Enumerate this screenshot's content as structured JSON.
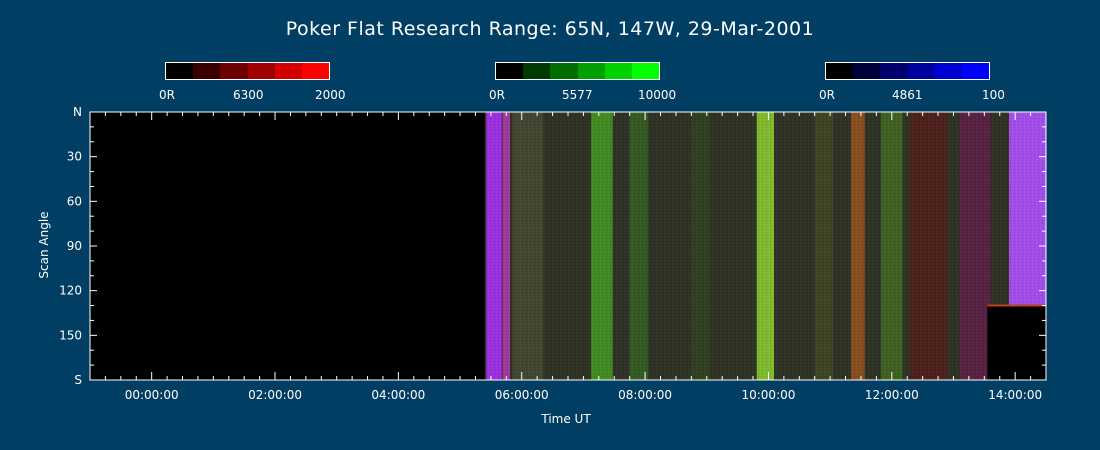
{
  "colorbars": [
    {
      "name": "red",
      "min_label": "0R",
      "mid_label": "6300",
      "max_label": "2000",
      "colors": [
        "#000000",
        "#3a0000",
        "#6e0000",
        "#a00000",
        "#d20000",
        "#ff0000"
      ]
    },
    {
      "name": "green",
      "min_label": "0R",
      "mid_label": "5577",
      "max_label": "10000",
      "colors": [
        "#000000",
        "#003a00",
        "#006e00",
        "#00a000",
        "#00d200",
        "#00ff00"
      ]
    },
    {
      "name": "blue",
      "min_label": "0R",
      "mid_label": "4861",
      "max_label": "100",
      "colors": [
        "#000000",
        "#00003a",
        "#00006e",
        "#0000a0",
        "#0000d2",
        "#0000ff"
      ]
    }
  ],
  "chart_data": {
    "type": "heatmap",
    "title": "Poker Flat Research Range: 65N, 147W, 29-Mar-2001",
    "xlabel": "Time UT",
    "ylabel": "Scan Angle",
    "x_range_hours": [
      -1.0,
      14.5
    ],
    "x_ticks": [
      {
        "hour": 0,
        "label": "00:00:00"
      },
      {
        "hour": 2,
        "label": "02:00:00"
      },
      {
        "hour": 4,
        "label": "04:00:00"
      },
      {
        "hour": 6,
        "label": "06:00:00"
      },
      {
        "hour": 8,
        "label": "08:00:00"
      },
      {
        "hour": 10,
        "label": "10:00:00"
      },
      {
        "hour": 12,
        "label": "12:00:00"
      },
      {
        "hour": 14,
        "label": "14:00:00"
      }
    ],
    "y_range": [
      0,
      180
    ],
    "y_ticks": [
      {
        "value": 0,
        "label": "N"
      },
      {
        "value": 30,
        "label": "30"
      },
      {
        "value": 60,
        "label": "60"
      },
      {
        "value": 90,
        "label": "90"
      },
      {
        "value": 120,
        "label": "120"
      },
      {
        "value": 150,
        "label": "150"
      },
      {
        "value": 180,
        "label": "S"
      }
    ],
    "data_start_hour": 5.4,
    "gap_after_hour": 13.55,
    "gap_below_angle": 130,
    "aurora_bands": [
      {
        "hour": 5.55,
        "width": 0.25,
        "color": "#b030ff",
        "opacity": 0.85
      },
      {
        "hour": 5.75,
        "width": 0.12,
        "color": "#ff40ff",
        "opacity": 0.55
      },
      {
        "hour": 6.1,
        "width": 0.5,
        "color": "#505838",
        "opacity": 0.55
      },
      {
        "hour": 7.3,
        "width": 0.35,
        "color": "#46a020",
        "opacity": 0.8
      },
      {
        "hour": 7.9,
        "width": 0.3,
        "color": "#3a7a20",
        "opacity": 0.55
      },
      {
        "hour": 8.9,
        "width": 0.3,
        "color": "#304a20",
        "opacity": 0.6
      },
      {
        "hour": 9.95,
        "width": 0.28,
        "color": "#8ac830",
        "opacity": 0.9
      },
      {
        "hour": 10.9,
        "width": 0.3,
        "color": "#4a5020",
        "opacity": 0.6
      },
      {
        "hour": 11.45,
        "width": 0.22,
        "color": "#b05a20",
        "opacity": 0.7
      },
      {
        "hour": 12.0,
        "width": 0.35,
        "color": "#4a8020",
        "opacity": 0.6
      },
      {
        "hour": 12.6,
        "width": 0.6,
        "color": "#5a1a18",
        "opacity": 0.7
      },
      {
        "hour": 13.35,
        "width": 0.5,
        "color": "#6a1a50",
        "opacity": 0.7
      },
      {
        "hour": 14.2,
        "width": 0.6,
        "color": "#b050ff",
        "opacity": 0.9
      }
    ]
  }
}
